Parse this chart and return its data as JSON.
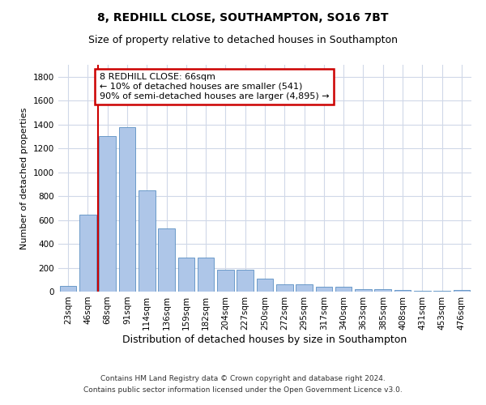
{
  "title1": "8, REDHILL CLOSE, SOUTHAMPTON, SO16 7BT",
  "title2": "Size of property relative to detached houses in Southampton",
  "xlabel": "Distribution of detached houses by size in Southampton",
  "ylabel": "Number of detached properties",
  "categories": [
    "23sqm",
    "46sqm",
    "68sqm",
    "91sqm",
    "114sqm",
    "136sqm",
    "159sqm",
    "182sqm",
    "204sqm",
    "227sqm",
    "250sqm",
    "272sqm",
    "295sqm",
    "317sqm",
    "340sqm",
    "363sqm",
    "385sqm",
    "408sqm",
    "431sqm",
    "453sqm",
    "476sqm"
  ],
  "values": [
    50,
    645,
    1305,
    1375,
    845,
    530,
    288,
    288,
    185,
    185,
    108,
    62,
    62,
    38,
    38,
    22,
    22,
    15,
    8,
    8,
    12
  ],
  "bar_color": "#aec6e8",
  "bar_edge_color": "#5a8fc2",
  "grid_color": "#d0d8e8",
  "vline_color": "#cc0000",
  "annotation_text": "8 REDHILL CLOSE: 66sqm\n← 10% of detached houses are smaller (541)\n90% of semi-detached houses are larger (4,895) →",
  "annotation_box_color": "#ffffff",
  "annotation_box_edge_color": "#cc0000",
  "ylim": [
    0,
    1900
  ],
  "yticks": [
    0,
    200,
    400,
    600,
    800,
    1000,
    1200,
    1400,
    1600,
    1800
  ],
  "footnote1": "Contains HM Land Registry data © Crown copyright and database right 2024.",
  "footnote2": "Contains public sector information licensed under the Open Government Licence v3.0.",
  "bg_color": "#ffffff",
  "title1_fontsize": 10,
  "title2_fontsize": 9,
  "ylabel_fontsize": 8,
  "xlabel_fontsize": 9,
  "tick_fontsize": 7.5,
  "annot_fontsize": 8
}
